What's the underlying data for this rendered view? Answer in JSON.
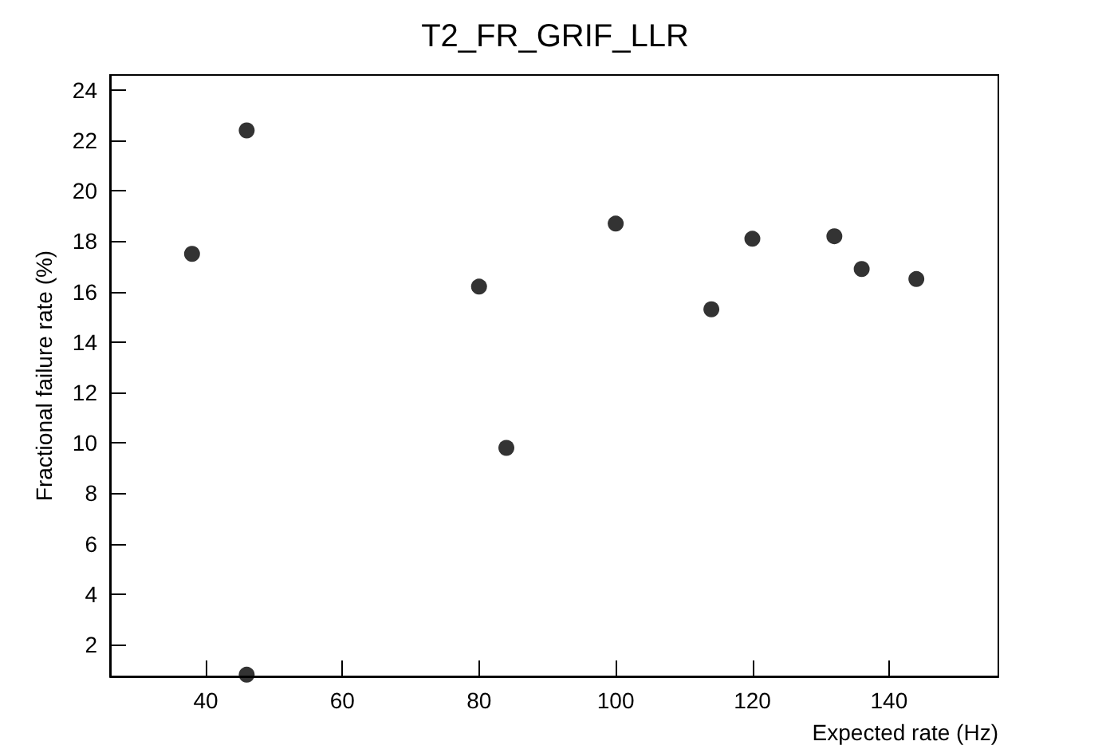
{
  "chart_data": {
    "type": "scatter",
    "title": "T2_FR_GRIF_LLR",
    "xlabel": "Expected rate (Hz)",
    "ylabel": "Fractional failure rate (%)",
    "x": [
      38,
      46,
      46,
      80,
      84,
      100,
      114,
      120,
      132,
      136,
      144
    ],
    "values": [
      17.5,
      22.4,
      0.8,
      16.2,
      9.8,
      18.7,
      15.3,
      18.1,
      18.2,
      16.9,
      16.5
    ],
    "color": "#000000",
    "marker": "circle",
    "grid": false,
    "xlim": [
      26,
      156
    ],
    "xticks": [
      40,
      60,
      80,
      100,
      120,
      140
    ],
    "ylim": [
      0.73,
      24.6
    ],
    "yticks": [
      2,
      4,
      6,
      8,
      10,
      12,
      14,
      16,
      18,
      20,
      22,
      24
    ]
  }
}
